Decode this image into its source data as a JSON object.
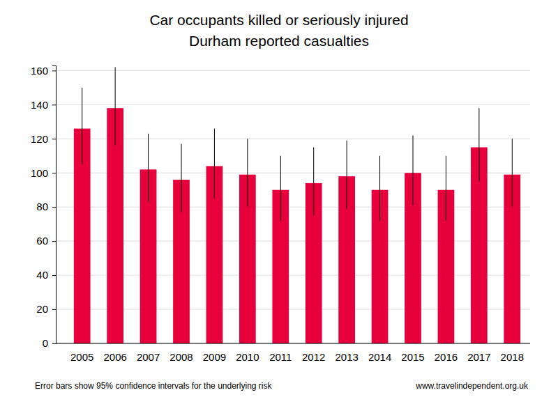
{
  "chart_data": {
    "type": "bar",
    "title": [
      "Car occupants killed or seriously injured",
      "Durham reported casualties"
    ],
    "categories": [
      "2005",
      "2006",
      "2007",
      "2008",
      "2009",
      "2010",
      "2011",
      "2012",
      "2013",
      "2014",
      "2015",
      "2016",
      "2017",
      "2018"
    ],
    "values": [
      126,
      138,
      102,
      96,
      104,
      99,
      90,
      94,
      98,
      90,
      100,
      90,
      115,
      99
    ],
    "ci_lower": [
      105,
      116,
      83,
      77,
      85,
      80,
      72,
      75,
      79,
      72,
      81,
      72,
      95,
      80
    ],
    "ci_upper": [
      150,
      162,
      123,
      117,
      126,
      120,
      110,
      115,
      119,
      110,
      122,
      110,
      138,
      120
    ],
    "color": "#e8003c",
    "ylim": [
      0,
      163
    ],
    "yticks": [
      0,
      20,
      40,
      60,
      80,
      100,
      120,
      140,
      160
    ],
    "grid": true,
    "footnote": "Error bars show 95% confidence intervals for the underlying risk",
    "source": "www.travelindependent.org.uk"
  }
}
